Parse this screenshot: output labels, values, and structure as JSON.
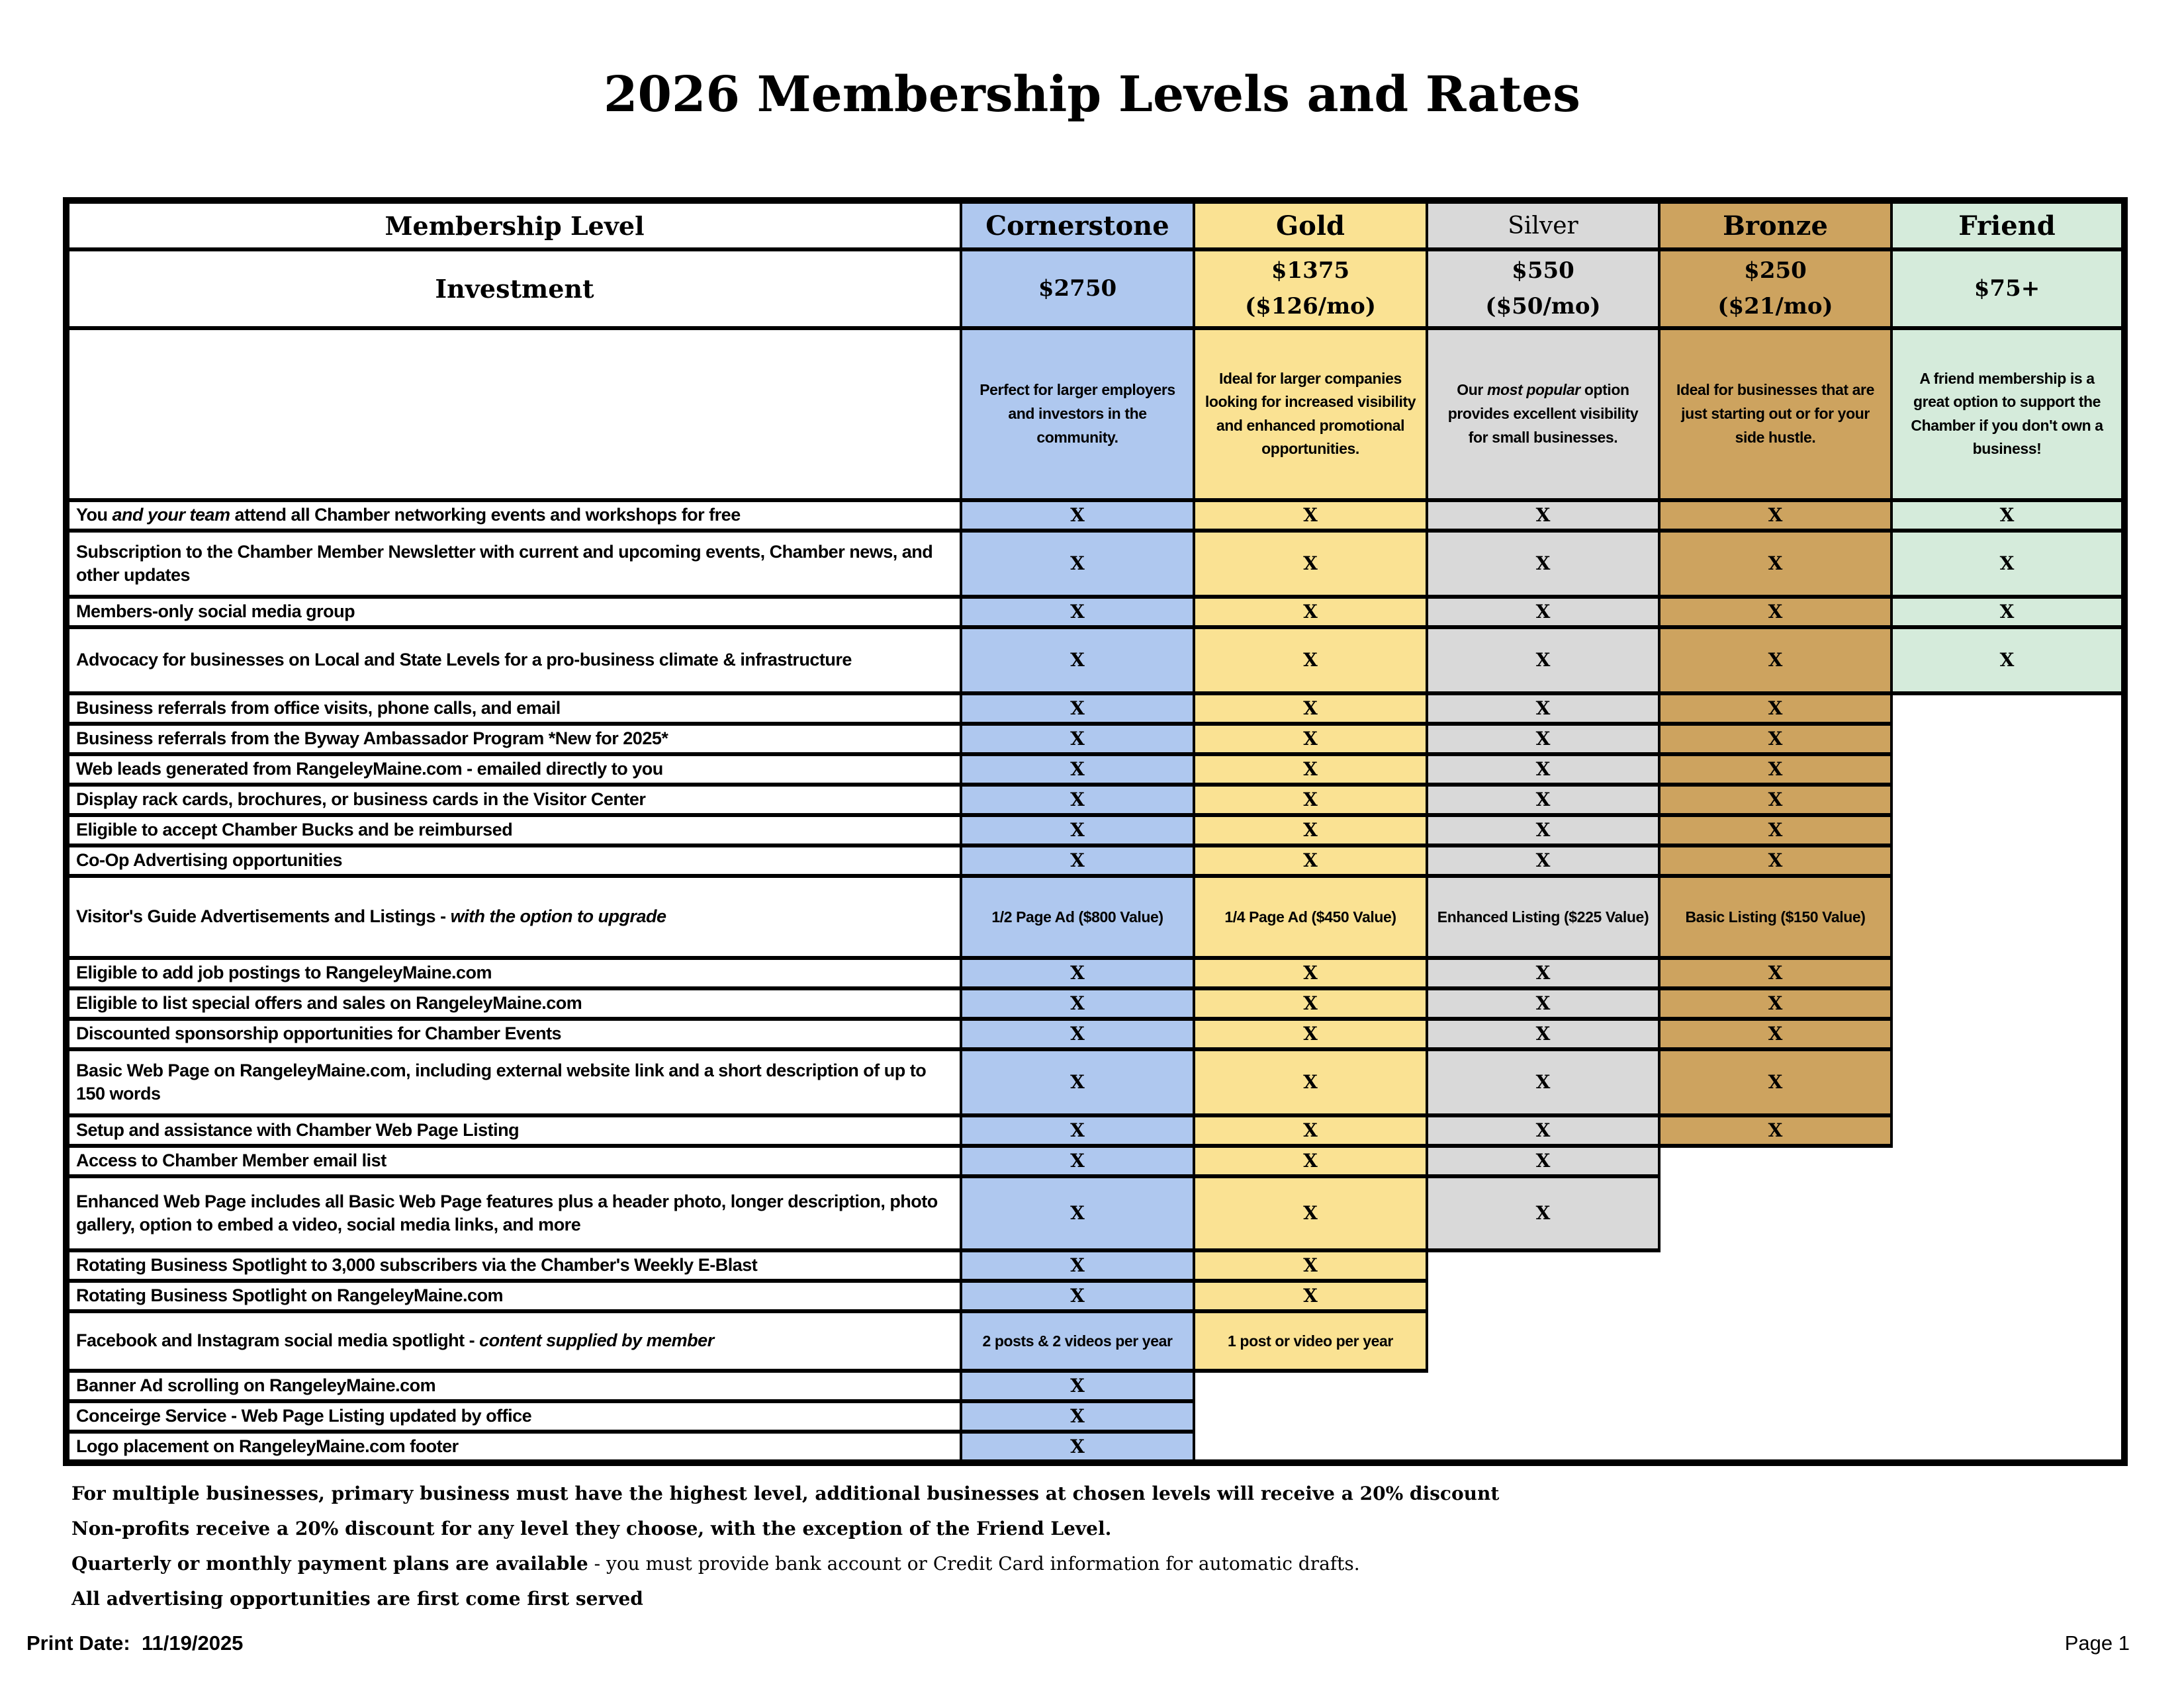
{
  "title": "2026 Membership Levels and Rates",
  "table": {
    "level_header": "Membership Level",
    "investment_header": "Investment",
    "columns": [
      {
        "name": "Cornerstone",
        "price": "$2750",
        "price_mo": "",
        "desc_pre": "Perfect for larger employers and investors in the community.",
        "desc_italic": "",
        "desc_post": "",
        "color": "#AFC8EF"
      },
      {
        "name": "Gold",
        "price": "$1375",
        "price_mo": "($126/mo)",
        "desc_pre": "Ideal for larger companies looking for increased visibility and enhanced promotional opportunities.",
        "desc_italic": "",
        "desc_post": "",
        "color": "#FAE293"
      },
      {
        "name": "Silver",
        "price": "$550",
        "price_mo": "($50/mo)",
        "desc_pre": "Our ",
        "desc_italic": "most popular",
        "desc_post": " option provides excellent visibility for small businesses.",
        "color": "#D9D9D9"
      },
      {
        "name": "Bronze",
        "price": "$250",
        "price_mo": "($21/mo)",
        "desc_pre": "Ideal for businesses that are just starting out or for your side hustle.",
        "desc_italic": "",
        "desc_post": "",
        "color": "#CDA35F"
      },
      {
        "name": "Friend",
        "price": "$75+",
        "price_mo": "",
        "desc_pre": "A friend membership is a great option to support the Chamber if you don't own a business!",
        "desc_italic": "",
        "desc_post": "",
        "color": "#D5EBDB"
      }
    ],
    "rows": [
      {
        "label_pre": "You ",
        "label_italic": "and your team",
        "label_post": " attend all Chamber networking events and workshops for free",
        "cells": [
          "X",
          "X",
          "X",
          "X",
          "X"
        ]
      },
      {
        "label_pre": "Subscription to the Chamber Member Newsletter with current and upcoming events, Chamber news, and other updates",
        "label_italic": "",
        "label_post": "",
        "cells": [
          "X",
          "X",
          "X",
          "X",
          "X"
        ]
      },
      {
        "label_pre": "Members-only social media group",
        "label_italic": "",
        "label_post": "",
        "cells": [
          "X",
          "X",
          "X",
          "X",
          "X"
        ]
      },
      {
        "label_pre": "Advocacy for businesses on Local and State Levels for a pro-business climate & infrastructure",
        "label_italic": "",
        "label_post": "",
        "cells": [
          "X",
          "X",
          "X",
          "X",
          "X"
        ]
      },
      {
        "label_pre": "Business referrals from office visits, phone calls, and email",
        "label_italic": "",
        "label_post": "",
        "cells": [
          "X",
          "X",
          "X",
          "X",
          null
        ]
      },
      {
        "label_pre": "Business referrals from the Byway Ambassador Program *New for 2025*",
        "label_italic": "",
        "label_post": "",
        "cells": [
          "X",
          "X",
          "X",
          "X",
          null
        ]
      },
      {
        "label_pre": "Web leads generated from RangeleyMaine.com - emailed directly to you",
        "label_italic": "",
        "label_post": "",
        "cells": [
          "X",
          "X",
          "X",
          "X",
          null
        ]
      },
      {
        "label_pre": "Display rack cards, brochures, or business cards in the Visitor Center",
        "label_italic": "",
        "label_post": "",
        "cells": [
          "X",
          "X",
          "X",
          "X",
          null
        ]
      },
      {
        "label_pre": "Eligible to accept Chamber Bucks and be reimbursed",
        "label_italic": "",
        "label_post": "",
        "cells": [
          "X",
          "X",
          "X",
          "X",
          null
        ]
      },
      {
        "label_pre": "Co-Op Advertising opportunities",
        "label_italic": "",
        "label_post": "",
        "cells": [
          "X",
          "X",
          "X",
          "X",
          null
        ]
      },
      {
        "label_pre": "Visitor's Guide Advertisements and Listings - ",
        "label_italic": "with the option to upgrade",
        "label_post": "",
        "cells": [
          "1/2 Page Ad ($800 Value)",
          "1/4 Page Ad ($450 Value)",
          "Enhanced Listing ($225 Value)",
          "Basic Listing ($150 Value)",
          null
        ]
      },
      {
        "label_pre": "Eligible to add job postings to RangeleyMaine.com",
        "label_italic": "",
        "label_post": "",
        "cells": [
          "X",
          "X",
          "X",
          "X",
          null
        ]
      },
      {
        "label_pre": "Eligible to list special offers and sales on RangeleyMaine.com",
        "label_italic": "",
        "label_post": "",
        "cells": [
          "X",
          "X",
          "X",
          "X",
          null
        ]
      },
      {
        "label_pre": "Discounted sponsorship opportunities for Chamber Events",
        "label_italic": "",
        "label_post": "",
        "cells": [
          "X",
          "X",
          "X",
          "X",
          null
        ]
      },
      {
        "label_pre": "Basic Web Page on RangeleyMaine.com, including external website link and a short description of up to 150 words",
        "label_italic": "",
        "label_post": "",
        "cells": [
          "X",
          "X",
          "X",
          "X",
          null
        ]
      },
      {
        "label_pre": "Setup and assistance with Chamber Web Page Listing",
        "label_italic": "",
        "label_post": "",
        "cells": [
          "X",
          "X",
          "X",
          "X",
          null
        ]
      },
      {
        "label_pre": "Access to Chamber Member email list",
        "label_italic": "",
        "label_post": "",
        "cells": [
          "X",
          "X",
          "X",
          null,
          null
        ]
      },
      {
        "label_pre": "Enhanced Web Page includes all Basic Web Page features plus a header photo, longer description, photo gallery, option to embed a video, social media links, and more",
        "label_italic": "",
        "label_post": "",
        "cells": [
          "X",
          "X",
          "X",
          null,
          null
        ]
      },
      {
        "label_pre": "Rotating Business Spotlight to 3,000 subscribers via the Chamber's Weekly E-Blast",
        "label_italic": "",
        "label_post": "",
        "cells": [
          "X",
          "X",
          null,
          null,
          null
        ]
      },
      {
        "label_pre": "Rotating Business Spotlight on RangeleyMaine.com",
        "label_italic": "",
        "label_post": "",
        "cells": [
          "X",
          "X",
          null,
          null,
          null
        ]
      },
      {
        "label_pre": "Facebook and Instagram social media spotlight - ",
        "label_italic": "content supplied by member",
        "label_post": "",
        "cells": [
          "2 posts & 2 videos per year",
          "1 post or video per year",
          null,
          null,
          null
        ]
      },
      {
        "label_pre": "Banner Ad scrolling on RangeleyMaine.com",
        "label_italic": "",
        "label_post": "",
        "cells": [
          "X",
          null,
          null,
          null,
          null
        ]
      },
      {
        "label_pre": "Conceirge Service - Web Page Listing updated by office",
        "label_italic": "",
        "label_post": "",
        "cells": [
          "X",
          null,
          null,
          null,
          null
        ]
      },
      {
        "label_pre": "Logo placement on RangeleyMaine.com footer",
        "label_italic": "",
        "label_post": "",
        "cells": [
          "X",
          null,
          null,
          null,
          null
        ]
      }
    ]
  },
  "footnotes": [
    {
      "bold": "For multiple businesses, primary business must have the highest level, additional businesses at chosen levels will receive a 20% discount",
      "normal": ""
    },
    {
      "bold": "Non-profits receive a 20% discount for any level they choose, with the exception of the Friend Level.",
      "normal": ""
    },
    {
      "bold": "Quarterly or monthly payment plans are available",
      "normal": " - you must provide bank account or Credit Card information for automatic drafts."
    },
    {
      "bold": "All advertising opportunities are first come first served",
      "normal": ""
    }
  ],
  "print_date_label": "Print Date:",
  "print_date_value": "11/19/2025",
  "page_label": "Page 1"
}
